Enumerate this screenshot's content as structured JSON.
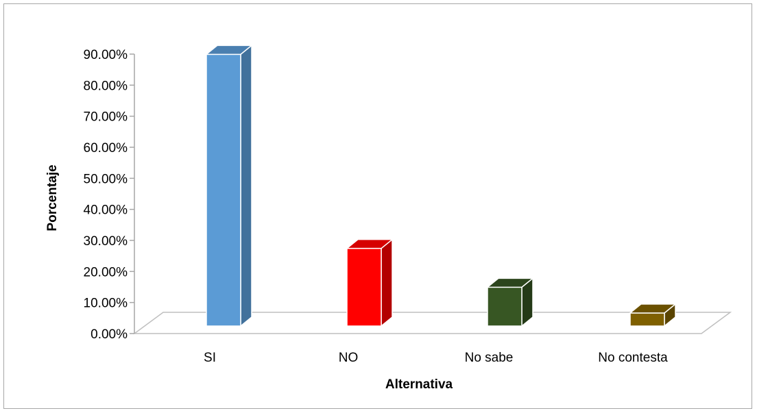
{
  "chart_data": {
    "type": "bar",
    "title": "",
    "xlabel": "Alternativa",
    "ylabel": "Porcentaje",
    "categories": [
      "SI",
      "NO",
      "No sabe",
      "No contesta"
    ],
    "values": [
      87.5,
      25.0,
      12.5,
      4.2
    ],
    "ylim": [
      0,
      90
    ],
    "yticks": [
      "0.00%",
      "10.00%",
      "20.00%",
      "30.00%",
      "40.00%",
      "50.00%",
      "60.00%",
      "70.00%",
      "80.00%",
      "90.00%"
    ],
    "colors": {
      "SI": [
        "#5b9bd5",
        "#41719c",
        "#4a7fb0"
      ],
      "NO": [
        "#ff0000",
        "#b30000",
        "#d60000"
      ],
      "No sabe": [
        "#375623",
        "#243a17",
        "#2c451c"
      ],
      "No contesta": [
        "#7f6000",
        "#5a4400",
        "#6b5100"
      ]
    },
    "grid": false,
    "three_d": true
  }
}
